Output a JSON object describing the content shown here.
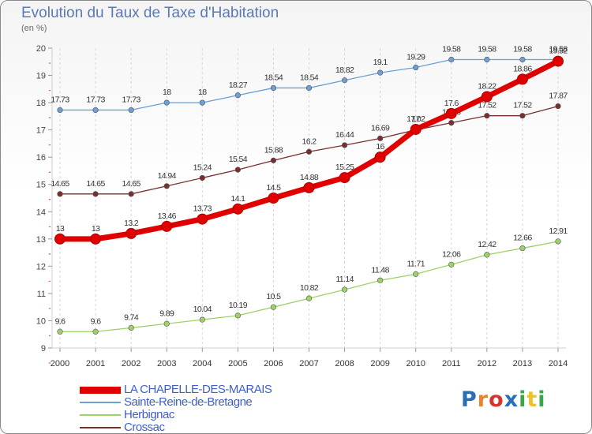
{
  "chart_data": {
    "type": "line",
    "title": "Evolution du Taux de Taxe d'Habitation",
    "subtitle": "(en %)",
    "x": [
      "2000",
      "2001",
      "2002",
      "2003",
      "2004",
      "2005",
      "2006",
      "2007",
      "2008",
      "2009",
      "2010",
      "2011",
      "2012",
      "2013",
      "2014"
    ],
    "ylim": [
      9,
      20
    ],
    "yticks": [
      "9",
      "10",
      "11",
      "12",
      "13",
      "14",
      "15",
      "16",
      "17",
      "18",
      "19",
      "20"
    ],
    "grid": "vertical-dashed",
    "legend_position": "bottom-left",
    "series": [
      {
        "name": "LA CHAPELLE-DES-MARAIS",
        "color": "#e00000",
        "width": "thick",
        "values": [
          13,
          13,
          13.2,
          13.46,
          13.73,
          14.1,
          14.5,
          14.88,
          15.25,
          16,
          17.02,
          17.6,
          18.22,
          18.86,
          19.52
        ],
        "labels": [
          "13",
          "13",
          "13.2",
          "13.46",
          "13.73",
          "14.1",
          "14.5",
          "14.88",
          "15.25",
          "16",
          "17.02",
          "17.6",
          "18.22",
          "18.86",
          "19.52"
        ]
      },
      {
        "name": "Sainte-Reine-de-Bretagne",
        "color": "#6c9fd4",
        "width": "thin",
        "values": [
          17.73,
          17.73,
          17.73,
          18,
          18,
          18.27,
          18.54,
          18.54,
          18.82,
          19.1,
          19.29,
          19.58,
          19.58,
          19.58,
          19.58
        ],
        "labels": [
          "17.73",
          "17.73",
          "17.73",
          "18",
          "18",
          "18.27",
          "18.54",
          "18.54",
          "18.82",
          "19.1",
          "19.29",
          "19.58",
          "19.58",
          "19.58",
          "19.58"
        ]
      },
      {
        "name": "Herbignac",
        "color": "#9fd16a",
        "width": "thin",
        "values": [
          9.6,
          9.6,
          9.74,
          9.89,
          10.04,
          10.19,
          10.5,
          10.82,
          11.14,
          11.48,
          11.71,
          12.06,
          12.42,
          12.66,
          12.91
        ],
        "labels": [
          "9.6",
          "9.6",
          "9.74",
          "9.89",
          "10.04",
          "10.19",
          "10.5",
          "10.82",
          "11.14",
          "11.48",
          "11.71",
          "12.06",
          "12.42",
          "12.66",
          "12.91"
        ]
      },
      {
        "name": "Crossac",
        "color": "#7a2f2f",
        "width": "thin",
        "values": [
          14.65,
          14.65,
          14.65,
          14.94,
          15.24,
          15.54,
          15.88,
          16.2,
          16.44,
          16.69,
          17,
          17.26,
          17.52,
          17.52,
          17.87
        ],
        "labels": [
          "14.65",
          "14.65",
          "14.65",
          "14.94",
          "15.24",
          "15.54",
          "15.88",
          "16.2",
          "16.44",
          "16.69",
          "17",
          "17.26",
          "17.52",
          "17.52",
          "17.87"
        ]
      }
    ]
  },
  "logo": {
    "text": "Proxiti",
    "colors": [
      "#2a6fb5",
      "#e8832a",
      "#d8342a",
      "#2a6fb5",
      "#3ca64a",
      "#e8c42a",
      "#3ca64a"
    ]
  }
}
